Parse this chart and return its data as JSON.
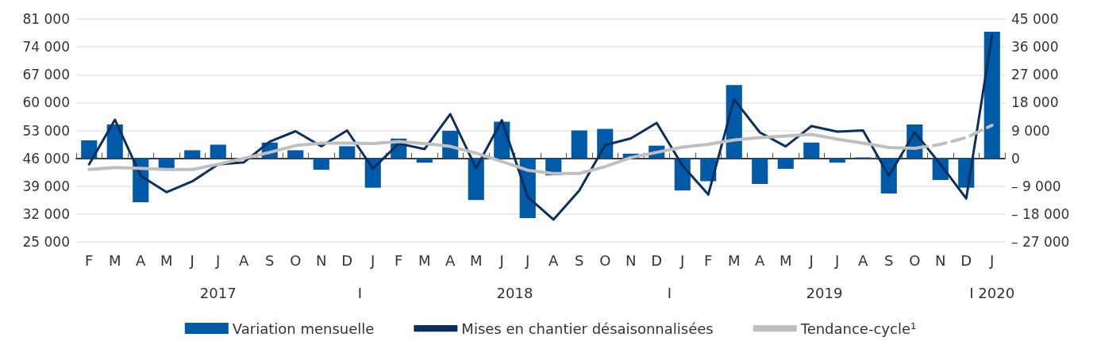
{
  "chart_data": {
    "type": "bar",
    "categories": [
      "F",
      "M",
      "A",
      "M",
      "J",
      "J",
      "A",
      "S",
      "O",
      "N",
      "D",
      "J",
      "F",
      "M",
      "A",
      "M",
      "J",
      "J",
      "A",
      "S",
      "O",
      "N",
      "D",
      "J",
      "F",
      "M",
      "A",
      "M",
      "J",
      "J",
      "A",
      "S",
      "O",
      "N",
      "D",
      "J"
    ],
    "series": [
      {
        "name": "Variation mensuelle",
        "axis": "y2",
        "color": "#005aa7",
        "values": [
          5800,
          10900,
          -14200,
          -3200,
          2600,
          4400,
          null,
          5100,
          2600,
          -3700,
          3900,
          -9500,
          6400,
          -1400,
          8900,
          -13500,
          11800,
          -19300,
          -5500,
          9000,
          9500,
          1500,
          4100,
          -10400,
          -7400,
          23700,
          -8300,
          -3400,
          5100,
          -1400,
          300,
          -11400,
          10900,
          -7000,
          -9500,
          40900
        ]
      },
      {
        "name": "Mises en chantier désaisonnalisées",
        "type": "line",
        "color": "#0d2f5c",
        "line_style": "solid",
        "values": [
          44500,
          55700,
          41600,
          37500,
          40200,
          44500,
          45000,
          50200,
          52800,
          49000,
          53000,
          43400,
          49700,
          48300,
          57100,
          43500,
          55600,
          36300,
          30600,
          37900,
          49300,
          51000,
          54900,
          44200,
          36900,
          60800,
          52500,
          49000,
          54100,
          52700,
          53000,
          41600,
          52500,
          44500,
          35900,
          77000
        ]
      },
      {
        "name": "Tendance-cycle¹",
        "type": "line",
        "color": "#bfbfbf",
        "line_style": "solid",
        "values": [
          43200,
          43700,
          43500,
          43200,
          43200,
          44500,
          46000,
          47500,
          49200,
          49800,
          49800,
          49700,
          50200,
          49700,
          49000,
          47300,
          45200,
          43000,
          42200,
          42200,
          43900,
          46200,
          47500,
          48800,
          49500,
          50600,
          51200,
          51600,
          52000,
          50800,
          49800,
          48700,
          48500,
          null,
          null,
          null
        ]
      },
      {
        "type": "line",
        "color": "#bfbfbf",
        "line_style": "dashed",
        "values": [
          null,
          null,
          null,
          null,
          null,
          null,
          null,
          null,
          null,
          null,
          null,
          null,
          null,
          null,
          null,
          null,
          null,
          null,
          null,
          null,
          null,
          null,
          null,
          null,
          null,
          null,
          null,
          null,
          null,
          null,
          null,
          null,
          48500,
          49500,
          51200,
          54300
        ]
      }
    ],
    "ylim": [
      25000,
      81000
    ],
    "yticks": [
      {
        "value": 25000,
        "label": "25 000"
      },
      {
        "value": 32000,
        "label": "32 000"
      },
      {
        "value": 39000,
        "label": "39 000"
      },
      {
        "value": 46000,
        "label": "46 000"
      },
      {
        "value": 53000,
        "label": "53 000"
      },
      {
        "value": 60000,
        "label": "60 000"
      },
      {
        "value": 67000,
        "label": "67 000"
      },
      {
        "value": 74000,
        "label": "74 000"
      },
      {
        "value": 81000,
        "label": "81 000"
      }
    ],
    "y2lim": [
      -27000,
      45000
    ],
    "y2ticks": [
      {
        "value": -27000,
        "label": "– 27 000"
      },
      {
        "value": -18000,
        "label": "– 18 000"
      },
      {
        "value": -9000,
        "label": "– 9 000"
      },
      {
        "value": 0,
        "label": "0"
      },
      {
        "value": 9000,
        "label": "9 000"
      },
      {
        "value": 18000,
        "label": "18 000"
      },
      {
        "value": 27000,
        "label": "27 000"
      },
      {
        "value": 36000,
        "label": "36 000"
      },
      {
        "value": 45000,
        "label": "45 000"
      }
    ],
    "annotations": [
      "2017",
      "I",
      "2018",
      "I",
      "2019",
      "I 2020"
    ],
    "grid": "y",
    "legend": "bottom",
    "marker": "none"
  }
}
